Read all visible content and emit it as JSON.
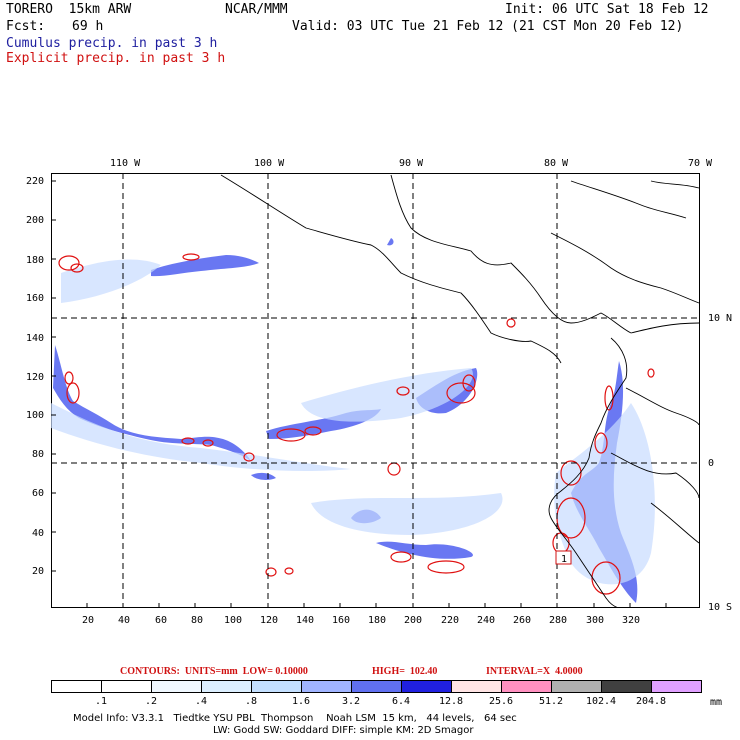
{
  "header": {
    "model": "TORERO  15km ARW",
    "org": "NCAR/MMM",
    "init": "Init: 06 UTC Sat 18 Feb 12",
    "fcst_label": "Fcst:",
    "fcst_value": "69 h",
    "valid": "Valid: 03 UTC Tue 21 Feb 12 (21 CST Mon 20 Feb 12)",
    "legend_blue": "Cumulus precip. in past 3 h",
    "legend_red": "Explicit precip. in past 3 h"
  },
  "map": {
    "top_lon_labels": [
      "110 W",
      "100 W",
      "90 W",
      "80 W",
      "70 W"
    ],
    "right_lat_labels": [
      "10 N",
      "0",
      "10 S"
    ],
    "left_ticks": [
      "220",
      "200",
      "180",
      "160",
      "140",
      "120",
      "100",
      "80",
      "60",
      "40",
      "20"
    ],
    "bottom_ticks": [
      "20",
      "40",
      "60",
      "80",
      "100",
      "120",
      "140",
      "160",
      "180",
      "200",
      "220",
      "240",
      "260",
      "280",
      "300",
      "320"
    ],
    "highlight_label": "1",
    "colors": {
      "coast": "#000000",
      "grid": "#000000",
      "cumulus": "#2030e0",
      "explicit": "#e01010"
    }
  },
  "contours_line": {
    "prefix": "CONTOURS:  UNITS=mm  LOW= 0.10000",
    "high": "HIGH=  102.40",
    "interval": "INTERVAL=X  4.0000"
  },
  "colorbar": {
    "unit": "mm",
    "labels": [
      ".1",
      ".2",
      ".4",
      ".8",
      "1.6",
      "3.2",
      "6.4",
      "12.8",
      "25.6",
      "51.2",
      "102.4",
      "204.8"
    ],
    "colors": [
      "#ffffff",
      "#ffffff",
      "#f0f8ff",
      "#dcefff",
      "#c4e0ff",
      "#a0b4ff",
      "#6070f0",
      "#2020e0",
      "#ffe4e4",
      "#ff90c0",
      "#b0b0b0",
      "#404040",
      "#e0a0ff"
    ]
  },
  "footer": {
    "line1": "Model Info: V3.3.1   Tiedtke YSU PBL  Thompson    Noah LSM  15 km,   44 levels,   64 sec",
    "line2": "LW: Godd SW: Goddard DIFF: simple KM: 2D Smagor"
  }
}
